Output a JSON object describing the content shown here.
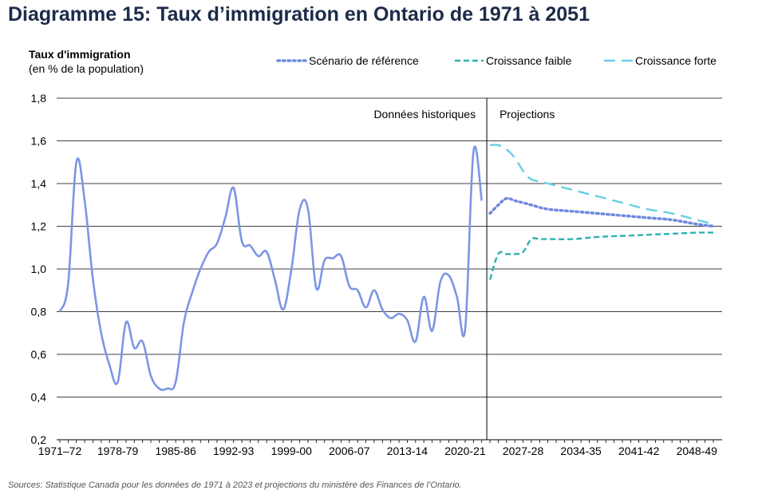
{
  "chart_data": {
    "type": "line",
    "title": "Diagramme 15: Taux d’immigration en Ontario de 1971 à 2051",
    "ylabel": "Taux d'immigration",
    "ylabel_sub": "(en % de la population)",
    "ylim": [
      0.2,
      1.8
    ],
    "yticks": [
      "0,2",
      "0,4",
      "0,6",
      "0,8",
      "1,0",
      "1,2",
      "1,4",
      "1,6",
      "1,8"
    ],
    "ytick_values": [
      0.2,
      0.4,
      0.6,
      0.8,
      1.0,
      1.2,
      1.4,
      1.6,
      1.8
    ],
    "xlim": [
      1971,
      2050
    ],
    "xticks": [
      {
        "label": "1971–72",
        "year": 1971
      },
      {
        "label": "1978-79",
        "year": 1978
      },
      {
        "label": "1985-86",
        "year": 1985
      },
      {
        "label": "1992-93",
        "year": 1992
      },
      {
        "label": "1999-00",
        "year": 1999
      },
      {
        "label": "2006-07",
        "year": 2006
      },
      {
        "label": "2013-14",
        "year": 2013
      },
      {
        "label": "2020-21",
        "year": 2020
      },
      {
        "label": "2027-28",
        "year": 2027
      },
      {
        "label": "2034-35",
        "year": 2034
      },
      {
        "label": "2041-42",
        "year": 2041
      },
      {
        "label": "2048-49",
        "year": 2048
      }
    ],
    "grid": true,
    "legend_position": "top",
    "divider_year": 2023,
    "annotations": {
      "historical": "Données historiques",
      "projections": "Projections"
    },
    "historical": {
      "color": "#7b96e6",
      "x": [
        1971,
        1972,
        1973,
        1974,
        1975,
        1976,
        1977,
        1978,
        1979,
        1980,
        1981,
        1982,
        1983,
        1984,
        1985,
        1986,
        1987,
        1988,
        1989,
        1990,
        1991,
        1992,
        1993,
        1994,
        1995,
        1996,
        1997,
        1998,
        1999,
        2000,
        2001,
        2002,
        2003,
        2004,
        2005,
        2006,
        2007,
        2008,
        2009,
        2010,
        2011,
        2012,
        2013,
        2014,
        2015,
        2016,
        2017,
        2018,
        2019,
        2020,
        2021,
        2022
      ],
      "values": [
        0.8,
        0.93,
        1.5,
        1.32,
        0.95,
        0.7,
        0.55,
        0.47,
        0.75,
        0.63,
        0.66,
        0.5,
        0.44,
        0.44,
        0.47,
        0.75,
        0.89,
        1.0,
        1.08,
        1.12,
        1.24,
        1.38,
        1.13,
        1.11,
        1.06,
        1.08,
        0.95,
        0.81,
        1.0,
        1.28,
        1.28,
        0.91,
        1.04,
        1.05,
        1.06,
        0.92,
        0.9,
        0.82,
        0.9,
        0.81,
        0.77,
        0.79,
        0.76,
        0.66,
        0.87,
        0.71,
        0.94,
        0.97,
        0.87,
        0.72,
        1.55,
        1.32
      ]
    },
    "series": [
      {
        "name": "Scénario de référence",
        "color": "#6f8ae0",
        "dash": "2.5 4",
        "width": 3.5,
        "x": [
          2023,
          2024,
          2025,
          2026,
          2027,
          2028,
          2030,
          2033,
          2036,
          2039,
          2042,
          2045,
          2048,
          2050
        ],
        "values": [
          1.26,
          1.3,
          1.33,
          1.32,
          1.31,
          1.3,
          1.28,
          1.27,
          1.26,
          1.25,
          1.24,
          1.23,
          1.21,
          1.2
        ]
      },
      {
        "name": "Croissance faible",
        "color": "#2ab3b1",
        "dash": "7 4",
        "width": 2.4,
        "x": [
          2023,
          2024,
          2025,
          2026,
          2027,
          2028,
          2029,
          2030,
          2033,
          2036,
          2039,
          2042,
          2045,
          2048,
          2050
        ],
        "values": [
          0.95,
          1.07,
          1.07,
          1.07,
          1.08,
          1.14,
          1.14,
          1.14,
          1.14,
          1.15,
          1.155,
          1.16,
          1.165,
          1.17,
          1.17
        ]
      },
      {
        "name": "Croissance forte",
        "color": "#69cde8",
        "dash": "14 8",
        "width": 2.4,
        "x": [
          2023,
          2024,
          2025,
          2026,
          2027,
          2028,
          2030,
          2033,
          2036,
          2039,
          2042,
          2045,
          2048,
          2050
        ],
        "values": [
          1.58,
          1.58,
          1.56,
          1.52,
          1.46,
          1.42,
          1.4,
          1.37,
          1.34,
          1.31,
          1.28,
          1.26,
          1.23,
          1.21
        ]
      }
    ]
  },
  "source": "Sources: Statistique Canada pour les données de 1971 à 2023 et projections du ministère des Finances de l’Ontario."
}
